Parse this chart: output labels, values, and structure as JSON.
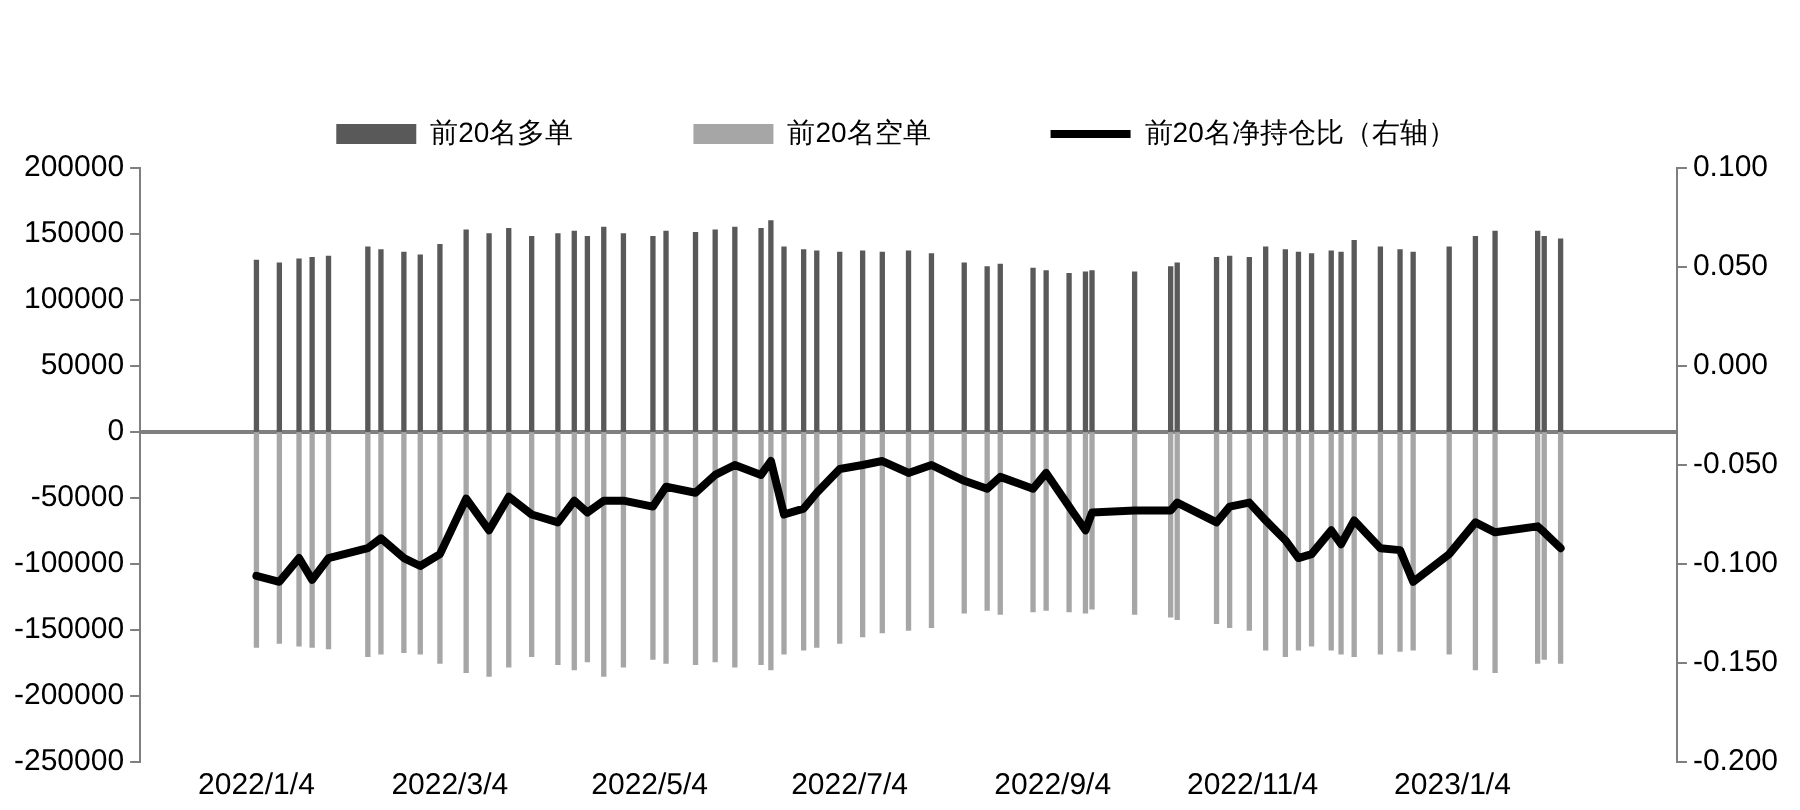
{
  "chart_data": {
    "type": "bar",
    "x": [
      "2022-01-04",
      "2022-01-11",
      "2022-01-17",
      "2022-01-21",
      "2022-01-26",
      "2022-02-07",
      "2022-02-11",
      "2022-02-18",
      "2022-02-23",
      "2022-03-01",
      "2022-03-09",
      "2022-03-16",
      "2022-03-22",
      "2022-03-29",
      "2022-04-06",
      "2022-04-11",
      "2022-04-15",
      "2022-04-20",
      "2022-04-26",
      "2022-05-05",
      "2022-05-09",
      "2022-05-18",
      "2022-05-24",
      "2022-05-30",
      "2022-06-07",
      "2022-06-10",
      "2022-06-14",
      "2022-06-20",
      "2022-06-24",
      "2022-07-01",
      "2022-07-08",
      "2022-07-14",
      "2022-07-22",
      "2022-07-29",
      "2022-08-08",
      "2022-08-15",
      "2022-08-19",
      "2022-08-29",
      "2022-09-02",
      "2022-09-09",
      "2022-09-14",
      "2022-09-16",
      "2022-09-29",
      "2022-10-10",
      "2022-10-12",
      "2022-10-24",
      "2022-10-28",
      "2022-11-03",
      "2022-11-08",
      "2022-11-14",
      "2022-11-18",
      "2022-11-22",
      "2022-11-28",
      "2022-12-01",
      "2022-12-05",
      "2022-12-13",
      "2022-12-19",
      "2022-12-23",
      "2023-01-03",
      "2023-01-11",
      "2023-01-17",
      "2023-01-30",
      "2023-02-01",
      "2023-02-06"
    ],
    "series": [
      {
        "name": "前20名多单",
        "color": "#595959",
        "values": [
          130000,
          128000,
          131000,
          132000,
          133000,
          140000,
          138000,
          136000,
          134000,
          142000,
          153000,
          150000,
          154000,
          148000,
          150000,
          152000,
          148000,
          155000,
          150000,
          148000,
          152000,
          151000,
          153000,
          155000,
          154000,
          160000,
          140000,
          138000,
          137000,
          136000,
          137000,
          136000,
          137000,
          135000,
          128000,
          125000,
          127000,
          124000,
          122000,
          120000,
          121000,
          122000,
          121000,
          125000,
          128000,
          132000,
          133000,
          132000,
          140000,
          138000,
          136000,
          135000,
          137000,
          136000,
          145000,
          140000,
          138000,
          136000,
          140000,
          148000,
          152000,
          152000,
          148000,
          146000
        ]
      },
      {
        "name": "前20名空单",
        "color": "#a6a6a6",
        "values": [
          -163000,
          -160000,
          -162000,
          -163000,
          -164000,
          -170000,
          -168000,
          -167000,
          -168000,
          -175000,
          -182000,
          -185000,
          -178000,
          -170000,
          -176000,
          -180000,
          -174000,
          -185000,
          -178000,
          -172000,
          -175000,
          -176000,
          -174000,
          -178000,
          -176000,
          -180000,
          -168000,
          -165000,
          -163000,
          -160000,
          -155000,
          -152000,
          -150000,
          -148000,
          -137000,
          -135000,
          -138000,
          -136000,
          -135000,
          -136000,
          -137000,
          -134000,
          -138000,
          -140000,
          -142000,
          -145000,
          -148000,
          -150000,
          -165000,
          -170000,
          -165000,
          -162000,
          -165000,
          -168000,
          -170000,
          -168000,
          -166000,
          -165000,
          -168000,
          -180000,
          -182000,
          -175000,
          -172000,
          -175000
        ]
      },
      {
        "name": "前20名净持仓比（右轴）",
        "type": "line",
        "axis": "y2",
        "color": "#000000",
        "values": [
          -0.106,
          -0.109,
          -0.097,
          -0.108,
          -0.097,
          -0.092,
          -0.087,
          -0.097,
          -0.101,
          -0.095,
          -0.067,
          -0.083,
          -0.066,
          -0.075,
          -0.079,
          -0.068,
          -0.074,
          -0.068,
          -0.068,
          -0.071,
          -0.061,
          -0.064,
          -0.055,
          -0.05,
          -0.055,
          -0.048,
          -0.075,
          -0.072,
          -0.064,
          -0.052,
          -0.05,
          -0.048,
          -0.054,
          -0.05,
          -0.058,
          -0.062,
          -0.056,
          -0.062,
          -0.054,
          -0.071,
          -0.083,
          -0.074,
          -0.073,
          -0.073,
          -0.069,
          -0.079,
          -0.071,
          -0.069,
          -0.078,
          -0.088,
          -0.097,
          -0.095,
          -0.083,
          -0.09,
          -0.078,
          -0.092,
          -0.093,
          -0.109,
          -0.095,
          -0.079,
          -0.084,
          -0.081,
          -0.084,
          -0.092
        ]
      }
    ],
    "xlim": [
      "2022-01-02",
      "2023-02-08"
    ],
    "xticks": [
      {
        "value": "2022-01-04",
        "label": "2022/1/4"
      },
      {
        "value": "2022-03-04",
        "label": "2022/3/4"
      },
      {
        "value": "2022-05-04",
        "label": "2022/5/4"
      },
      {
        "value": "2022-07-04",
        "label": "2022/7/4"
      },
      {
        "value": "2022-09-04",
        "label": "2022/9/4"
      },
      {
        "value": "2022-11-04",
        "label": "2022/11/4"
      },
      {
        "value": "2023-01-04",
        "label": "2023/1/4"
      }
    ],
    "ylim": [
      -250000,
      200000
    ],
    "yticks": [
      -250000,
      -200000,
      -150000,
      -100000,
      -50000,
      0,
      50000,
      100000,
      150000,
      200000
    ],
    "y2lim": [
      -0.2,
      0.1
    ],
    "y2ticks": [
      {
        "value": -0.2,
        "label": "-0.200"
      },
      {
        "value": -0.15,
        "label": "-0.150"
      },
      {
        "value": -0.1,
        "label": "-0.100"
      },
      {
        "value": -0.05,
        "label": "-0.050"
      },
      {
        "value": 0,
        "label": "0.000"
      },
      {
        "value": 0.05,
        "label": "0.050"
      },
      {
        "value": 0.1,
        "label": "0.100"
      }
    ],
    "legend": "top",
    "grid": false,
    "stacked": true,
    "ref_lines": [
      {
        "axis": "y",
        "value": 0,
        "color": "#7f7f7f"
      }
    ],
    "line_style": "solid",
    "marker": "none"
  }
}
